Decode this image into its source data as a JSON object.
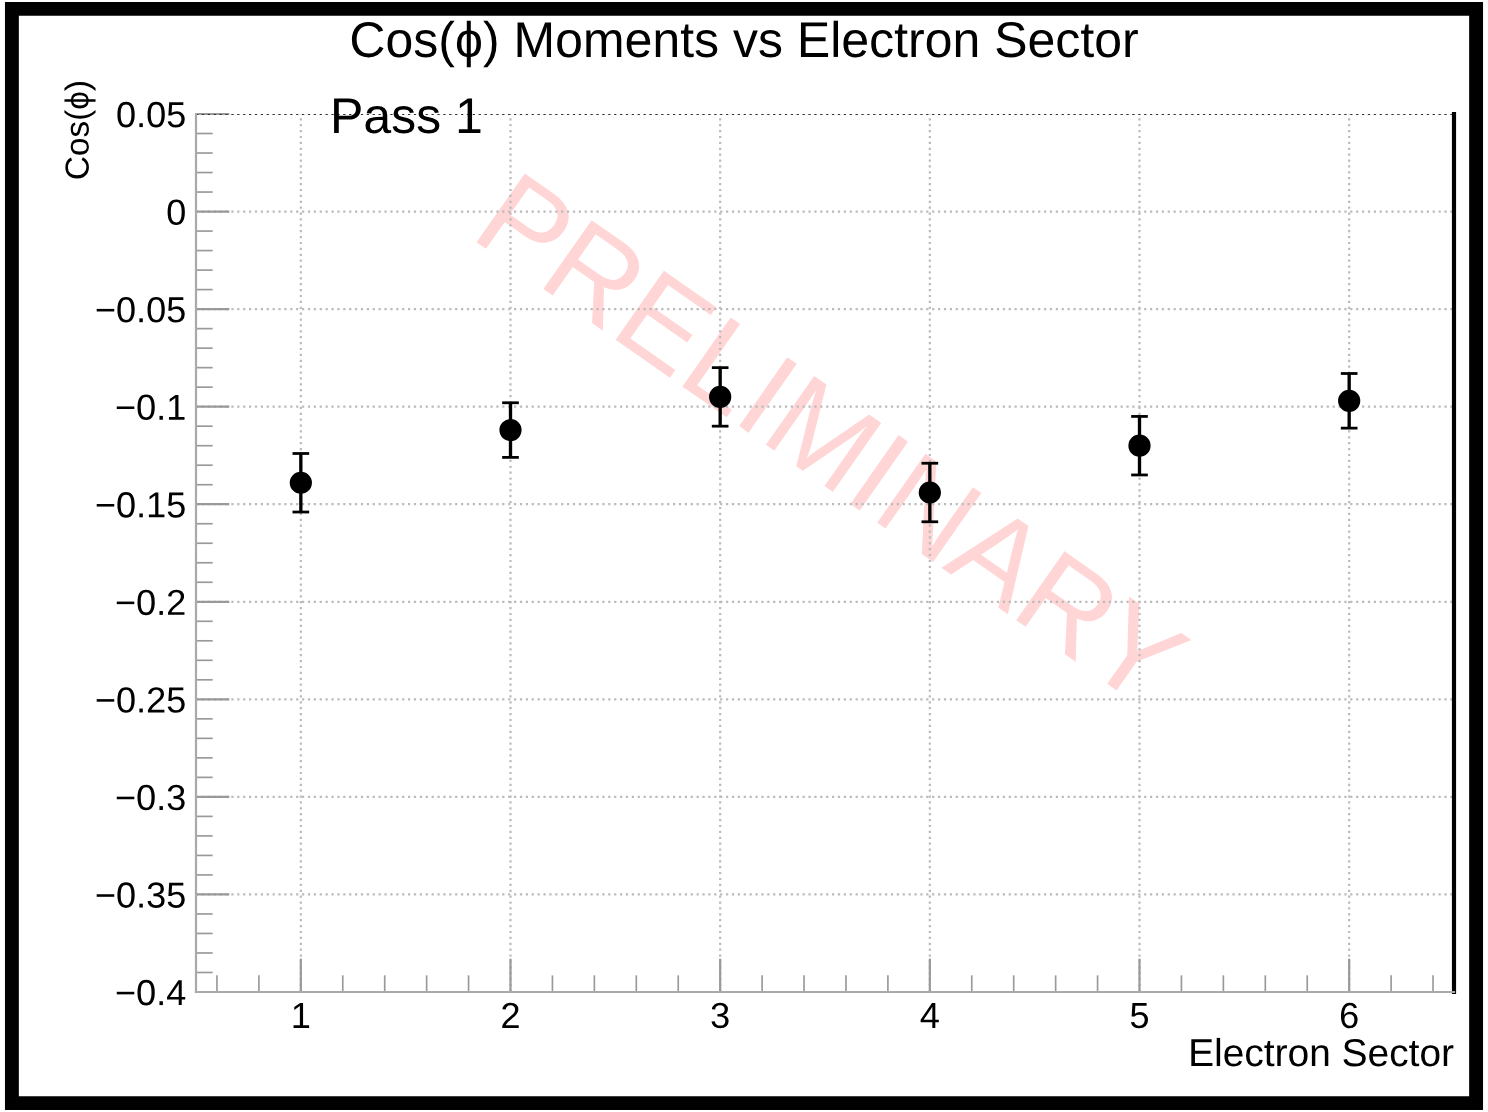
{
  "chart_data": {
    "type": "scatter",
    "title": "Cos(ϕ) Moments vs Electron Sector",
    "subtitle": "Pass 1",
    "xlabel": "Electron Sector",
    "ylabel": "Cos(ϕ)",
    "x": [
      1,
      2,
      3,
      4,
      5,
      6
    ],
    "values": [
      -0.139,
      -0.112,
      -0.095,
      -0.144,
      -0.12,
      -0.097
    ],
    "errors": [
      0.015,
      0.014,
      0.015,
      0.015,
      0.015,
      0.014
    ],
    "color": "#000000",
    "marker": "circle",
    "grid": true,
    "xlim": [
      0.5,
      6.5
    ],
    "xticks": [
      1,
      2,
      3,
      4,
      5,
      6
    ],
    "ylim": [
      -0.4,
      0.05
    ],
    "yticks": [
      -0.4,
      -0.35,
      -0.3,
      -0.25,
      -0.2,
      -0.15,
      -0.1,
      -0.05,
      0,
      0.05
    ],
    "annotations": [
      "PRELIMINARY"
    ]
  }
}
